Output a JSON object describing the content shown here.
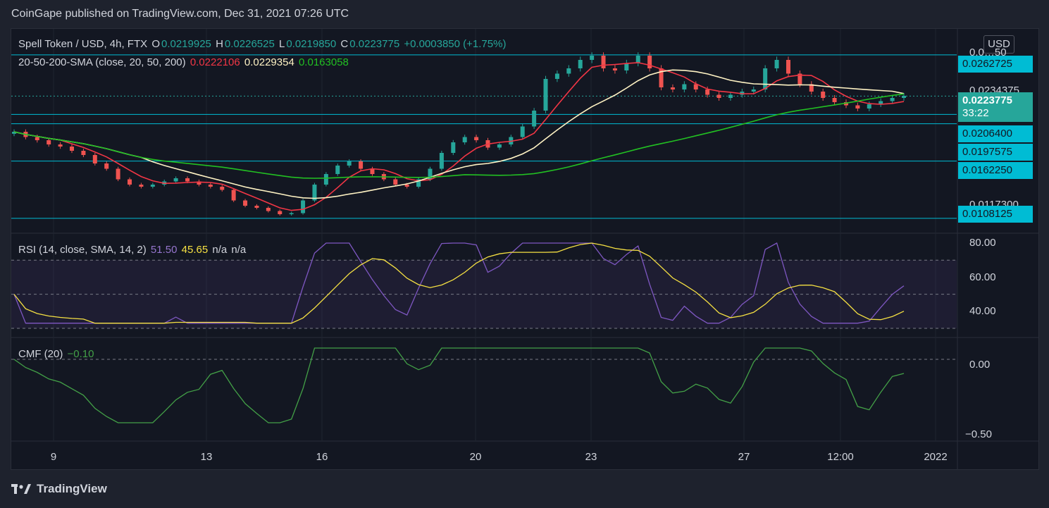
{
  "header": {
    "publisher": "CoinGape published on TradingView.com, Dec 31, 2021 07:26 UTC"
  },
  "legend": {
    "symbol": "Spell Token / USD, 4h, FTX",
    "o_label": "O",
    "o": "0.0219925",
    "h_label": "H",
    "h": "0.0226525",
    "l_label": "L",
    "l": "0.0219850",
    "c_label": "C",
    "c": "0.0223775",
    "change": "+0.0003850 (+1.75%)",
    "sma_name": "20-50-200-SMA (close, 20, 50, 200)",
    "sma20": "0.0222106",
    "sma50": "0.0229354",
    "sma200": "0.0163058",
    "rsi_name": "RSI (14, close, SMA, 14, 2)",
    "rsi_val": "51.50",
    "rsi_sma": "45.65",
    "rsi_na1": "n/a",
    "rsi_na2": "n/a",
    "cmf_name": "CMF (20)",
    "cmf_val": "−0.10"
  },
  "price_axis": {
    "currency": "USD",
    "labels": [
      "0.0262725",
      "0.0234375",
      "0.0223775",
      "0.0206400",
      "0.0197575",
      "0.0162250",
      "0.0117300",
      "0.0108125"
    ],
    "current": "0.0223775",
    "countdown": "33:22",
    "partial_top": "0.0…50"
  },
  "rsi_axis": [
    "80.00",
    "60.00",
    "40.00"
  ],
  "cmf_axis": [
    "0.00",
    "−0.50"
  ],
  "x_axis": [
    "9",
    "13",
    "16",
    "20",
    "23",
    "27",
    "12:00",
    "2022"
  ],
  "colors": {
    "up": "#26a69a",
    "down": "#ef5350",
    "sma20": "#f23645",
    "sma50": "#fff3c4",
    "sma200": "#22c022",
    "rsi": "#7e57c2",
    "rsi_sma": "#f5e042",
    "cmf": "#43a047",
    "hline": "#00bcd4"
  },
  "chart_data": {
    "type": "line",
    "title": "Spell Token / USD, 4h, FTX",
    "horizontal_levels": [
      0.0262725,
      0.0223775,
      0.02064,
      0.0197575,
      0.016225,
      0.0108125
    ],
    "approx_close": [
      0.019,
      0.0185,
      0.0182,
      0.0178,
      0.0176,
      0.0172,
      0.0168,
      0.016,
      0.0155,
      0.0145,
      0.014,
      0.0138,
      0.014,
      0.0143,
      0.0146,
      0.0143,
      0.014,
      0.0138,
      0.0135,
      0.0125,
      0.012,
      0.0118,
      0.0115,
      0.0112,
      0.0113,
      0.0125,
      0.014,
      0.015,
      0.0158,
      0.0162,
      0.0155,
      0.015,
      0.0145,
      0.014,
      0.0138,
      0.0145,
      0.0155,
      0.017,
      0.018,
      0.0185,
      0.0182,
      0.0175,
      0.0178,
      0.0185,
      0.0195,
      0.021,
      0.024,
      0.0245,
      0.025,
      0.0258,
      0.0262,
      0.025,
      0.0248,
      0.0255,
      0.0262,
      0.025,
      0.0232,
      0.023,
      0.0235,
      0.023,
      0.0225,
      0.0222,
      0.0225,
      0.0228,
      0.023,
      0.025,
      0.0258,
      0.0245,
      0.0235,
      0.0228,
      0.0222,
      0.0218,
      0.0215,
      0.0212,
      0.0216,
      0.0219,
      0.0222,
      0.0224
    ],
    "rsi": {
      "value": 51.5,
      "sma": 45.65,
      "bands": [
        70,
        50,
        30
      ],
      "ylim": [
        30,
        80
      ]
    },
    "cmf": {
      "value": -0.1,
      "ylim": [
        -0.5,
        0.1
      ]
    }
  }
}
